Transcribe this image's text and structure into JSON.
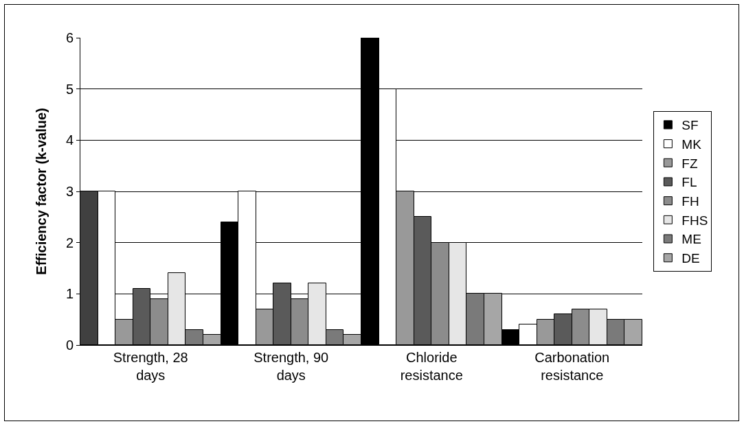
{
  "chart_data": {
    "type": "bar",
    "ylabel": "Efficiency factor (k-value)",
    "categories": [
      "Strength,  28 days",
      "Strength,   90 days",
      "Chloride resistance",
      "Carbonation resistance"
    ],
    "series": [
      {
        "name": "SF",
        "color": "#000000",
        "colors": [
          "#404040",
          "#000000",
          "#000000",
          "#000000"
        ],
        "values": [
          3,
          2.4,
          6,
          0.3
        ]
      },
      {
        "name": "MK",
        "color": "#ffffff",
        "values": [
          3,
          3,
          5,
          0.4
        ]
      },
      {
        "name": "FZ",
        "color": "#999999",
        "values": [
          0.5,
          0.7,
          3,
          0.5
        ]
      },
      {
        "name": "FL",
        "color": "#5a5a5a",
        "values": [
          1.1,
          1.2,
          2.5,
          0.6
        ]
      },
      {
        "name": "FH",
        "color": "#8c8c8c",
        "values": [
          0.9,
          0.9,
          2,
          0.7
        ]
      },
      {
        "name": "FHS",
        "color": "#e6e6e6",
        "values": [
          1.4,
          1.2,
          2,
          0.7
        ]
      },
      {
        "name": "ME",
        "color": "#7a7a7a",
        "values": [
          0.3,
          0.3,
          1,
          0.5
        ]
      },
      {
        "name": "DE",
        "color": "#a6a6a6",
        "values": [
          0.2,
          0.2,
          1,
          0.5
        ]
      }
    ],
    "ylim": [
      0,
      6
    ],
    "yticks": [
      0,
      1,
      2,
      3,
      4,
      5,
      6
    ],
    "grid": "y",
    "legend": "right"
  }
}
